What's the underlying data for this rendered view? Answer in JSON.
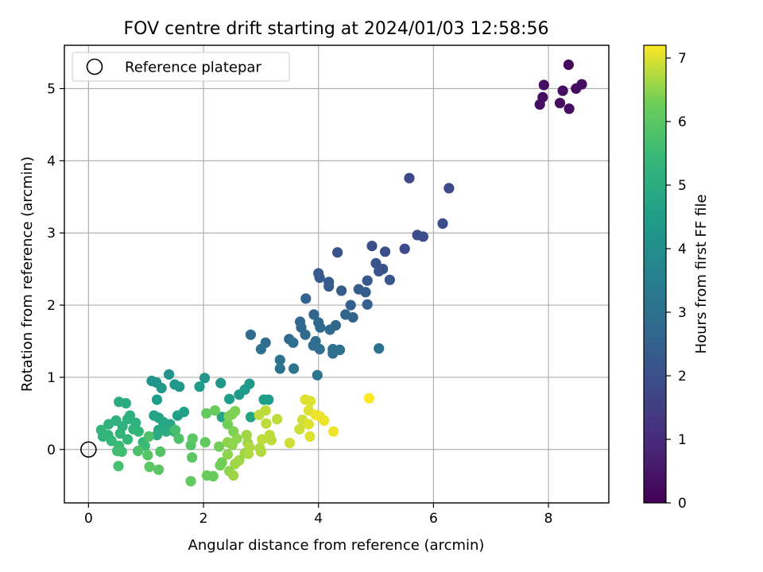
{
  "chart_data": {
    "type": "scatter",
    "title": "FOV centre drift starting at 2024/01/03 12:58:56",
    "xlabel": "Angular distance from reference (arcmin)",
    "ylabel": "Rotation from reference (arcmin)",
    "xlim": [
      -0.42,
      9.05
    ],
    "ylim": [
      -0.74,
      5.6
    ],
    "xticks": [
      0,
      2,
      4,
      6,
      8
    ],
    "yticks": [
      0,
      1,
      2,
      3,
      4,
      5
    ],
    "grid": true,
    "legend": {
      "position": "top-left",
      "entries": [
        "Reference platepar"
      ]
    },
    "reference_point": {
      "x": 0,
      "y": 0
    },
    "colorbar": {
      "label": "Hours from first FF file",
      "min": 0,
      "max": 7.2,
      "ticks": [
        0,
        1,
        2,
        3,
        4,
        5,
        6,
        7
      ],
      "colormap": "viridis"
    },
    "points": [
      [
        8.35,
        5.33,
        0.2
      ],
      [
        7.92,
        5.05,
        0.3
      ],
      [
        8.58,
        5.06,
        0.3
      ],
      [
        8.48,
        5.0,
        0.3
      ],
      [
        8.25,
        4.97,
        0.3
      ],
      [
        7.9,
        4.88,
        0.3
      ],
      [
        8.2,
        4.8,
        0.3
      ],
      [
        7.85,
        4.78,
        0.3
      ],
      [
        8.36,
        4.72,
        0.3
      ],
      [
        5.58,
        3.76,
        1.8
      ],
      [
        6.27,
        3.62,
        1.8
      ],
      [
        6.16,
        3.13,
        1.9
      ],
      [
        5.72,
        2.97,
        1.9
      ],
      [
        5.82,
        2.95,
        1.9
      ],
      [
        5.5,
        2.78,
        1.9
      ],
      [
        4.93,
        2.82,
        2.0
      ],
      [
        5.16,
        2.74,
        2.0
      ],
      [
        4.33,
        2.73,
        2.1
      ],
      [
        5.0,
        2.58,
        2.1
      ],
      [
        5.12,
        2.5,
        2.1
      ],
      [
        5.05,
        2.47,
        2.1
      ],
      [
        5.24,
        2.35,
        2.2
      ],
      [
        4.0,
        2.44,
        2.3
      ],
      [
        4.02,
        2.38,
        2.3
      ],
      [
        4.18,
        2.32,
        2.3
      ],
      [
        4.85,
        2.34,
        2.3
      ],
      [
        4.18,
        2.26,
        2.3
      ],
      [
        4.4,
        2.2,
        2.4
      ],
      [
        4.7,
        2.22,
        2.4
      ],
      [
        4.82,
        2.18,
        2.4
      ],
      [
        3.78,
        2.09,
        2.5
      ],
      [
        4.56,
        2.0,
        2.5
      ],
      [
        4.85,
        2.01,
        2.5
      ],
      [
        3.92,
        1.87,
        2.6
      ],
      [
        4.47,
        1.87,
        2.6
      ],
      [
        4.6,
        1.83,
        2.6
      ],
      [
        3.68,
        1.77,
        2.7
      ],
      [
        4.0,
        1.76,
        2.7
      ],
      [
        3.7,
        1.69,
        2.7
      ],
      [
        4.03,
        1.69,
        2.7
      ],
      [
        4.3,
        1.72,
        2.7
      ],
      [
        4.2,
        1.66,
        2.8
      ],
      [
        2.82,
        1.59,
        2.8
      ],
      [
        3.77,
        1.59,
        2.8
      ],
      [
        3.49,
        1.53,
        2.8
      ],
      [
        3.56,
        1.48,
        2.9
      ],
      [
        3.08,
        1.48,
        2.9
      ],
      [
        3.95,
        1.5,
        2.9
      ],
      [
        3.91,
        1.44,
        2.9
      ],
      [
        4.02,
        1.39,
        2.9
      ],
      [
        4.25,
        1.39,
        3.0
      ],
      [
        4.37,
        1.38,
        3.0
      ],
      [
        4.25,
        1.33,
        3.0
      ],
      [
        3.0,
        1.39,
        3.0
      ],
      [
        5.05,
        1.4,
        3.0
      ],
      [
        3.33,
        1.24,
        3.1
      ],
      [
        3.33,
        1.12,
        3.1
      ],
      [
        3.57,
        1.12,
        3.1
      ],
      [
        3.98,
        1.03,
        3.2
      ],
      [
        1.4,
        1.04,
        4.1
      ],
      [
        1.1,
        0.95,
        4.2
      ],
      [
        1.18,
        0.93,
        4.2
      ],
      [
        2.02,
        0.99,
        4.2
      ],
      [
        2.3,
        0.92,
        4.3
      ],
      [
        1.5,
        0.9,
        4.3
      ],
      [
        1.58,
        0.87,
        4.3
      ],
      [
        2.8,
        0.91,
        4.3
      ],
      [
        1.27,
        0.85,
        4.3
      ],
      [
        1.93,
        0.87,
        4.4
      ],
      [
        2.72,
        0.83,
        4.4
      ],
      [
        2.62,
        0.76,
        4.4
      ],
      [
        2.45,
        0.7,
        4.5
      ],
      [
        1.19,
        0.69,
        4.5
      ],
      [
        3.05,
        0.69,
        4.5
      ],
      [
        3.13,
        0.69,
        4.5
      ],
      [
        0.53,
        0.66,
        5.0
      ],
      [
        0.65,
        0.64,
        5.0
      ],
      [
        1.66,
        0.52,
        4.6
      ],
      [
        1.55,
        0.47,
        4.6
      ],
      [
        1.14,
        0.47,
        4.7
      ],
      [
        1.22,
        0.44,
        4.7
      ],
      [
        2.32,
        0.45,
        4.7
      ],
      [
        2.82,
        0.45,
        4.7
      ],
      [
        1.3,
        0.38,
        4.8
      ],
      [
        1.42,
        0.35,
        4.8
      ],
      [
        0.72,
        0.47,
        5.1
      ],
      [
        0.68,
        0.42,
        5.1
      ],
      [
        0.48,
        0.4,
        5.2
      ],
      [
        0.35,
        0.35,
        5.2
      ],
      [
        0.82,
        0.37,
        5.2
      ],
      [
        0.59,
        0.32,
        5.2
      ],
      [
        0.22,
        0.27,
        5.3
      ],
      [
        0.78,
        0.28,
        5.3
      ],
      [
        0.87,
        0.25,
        5.3
      ],
      [
        1.22,
        0.27,
        4.9
      ],
      [
        1.49,
        0.25,
        4.9
      ],
      [
        1.35,
        0.25,
        5.0
      ],
      [
        1.19,
        0.2,
        5.0
      ],
      [
        0.34,
        0.2,
        5.3
      ],
      [
        0.25,
        0.18,
        5.3
      ],
      [
        0.55,
        0.22,
        5.3
      ],
      [
        0.4,
        0.12,
        5.4
      ],
      [
        0.68,
        0.14,
        5.4
      ],
      [
        0.53,
        0.05,
        5.5
      ],
      [
        0.95,
        0.1,
        5.4
      ],
      [
        0.98,
        0.05,
        5.5
      ],
      [
        0.58,
        -0.03,
        5.6
      ],
      [
        0.5,
        -0.02,
        5.6
      ],
      [
        0.52,
        -0.23,
        5.7
      ],
      [
        1.51,
        0.27,
        5.7
      ],
      [
        1.57,
        0.15,
        5.8
      ],
      [
        1.05,
        0.18,
        5.8
      ],
      [
        0.86,
        -0.02,
        5.8
      ],
      [
        1.25,
        -0.03,
        5.9
      ],
      [
        1.03,
        -0.08,
        5.9
      ],
      [
        1.78,
        0.06,
        5.9
      ],
      [
        1.06,
        -0.24,
        6.0
      ],
      [
        1.22,
        -0.28,
        6.0
      ],
      [
        1.81,
        0.15,
        6.0
      ],
      [
        1.8,
        -0.11,
        6.0
      ],
      [
        1.78,
        -0.44,
        6.1
      ],
      [
        2.03,
        0.1,
        6.1
      ],
      [
        2.05,
        0.5,
        6.1
      ],
      [
        2.2,
        0.54,
        6.2
      ],
      [
        2.06,
        -0.36,
        6.2
      ],
      [
        2.17,
        -0.37,
        6.2
      ],
      [
        2.27,
        0.04,
        6.3
      ],
      [
        2.32,
        -0.18,
        6.3
      ],
      [
        2.29,
        -0.22,
        6.3
      ],
      [
        2.42,
        0.35,
        6.3
      ],
      [
        2.44,
        0.46,
        6.4
      ],
      [
        2.5,
        0.49,
        6.4
      ],
      [
        2.55,
        0.53,
        6.4
      ],
      [
        2.52,
        0.25,
        6.4
      ],
      [
        2.42,
        0.1,
        6.5
      ],
      [
        2.5,
        0.06,
        6.5
      ],
      [
        2.58,
        0.15,
        6.5
      ],
      [
        2.42,
        -0.07,
        6.5
      ],
      [
        2.45,
        -0.3,
        6.5
      ],
      [
        2.52,
        -0.36,
        6.6
      ],
      [
        2.55,
        -0.2,
        6.6
      ],
      [
        2.62,
        -0.15,
        6.6
      ],
      [
        2.75,
        0.2,
        6.6
      ],
      [
        2.77,
        0.09,
        6.6
      ],
      [
        2.72,
        -0.05,
        6.6
      ],
      [
        2.8,
        0.03,
        6.7
      ],
      [
        2.78,
        -0.06,
        6.7
      ],
      [
        2.98,
        0.02,
        6.7
      ],
      [
        3.0,
        -0.03,
        6.7
      ],
      [
        3.02,
        0.14,
        6.8
      ],
      [
        3.18,
        0.13,
        6.8
      ],
      [
        3.15,
        0.2,
        6.8
      ],
      [
        3.09,
        0.36,
        6.8
      ],
      [
        2.97,
        0.48,
        6.8
      ],
      [
        3.08,
        0.54,
        6.8
      ],
      [
        3.28,
        0.42,
        6.8
      ],
      [
        3.5,
        0.09,
        6.9
      ],
      [
        3.67,
        0.28,
        6.9
      ],
      [
        3.72,
        0.41,
        6.9
      ],
      [
        3.83,
        0.35,
        7.0
      ],
      [
        3.85,
        0.18,
        7.0
      ],
      [
        3.83,
        0.54,
        7.0
      ],
      [
        3.77,
        0.69,
        7.0
      ],
      [
        3.86,
        0.67,
        7.0
      ],
      [
        3.95,
        0.48,
        7.1
      ],
      [
        4.02,
        0.46,
        7.1
      ],
      [
        4.1,
        0.4,
        7.1
      ],
      [
        4.26,
        0.25,
        7.1
      ],
      [
        4.88,
        0.71,
        7.2
      ]
    ]
  }
}
